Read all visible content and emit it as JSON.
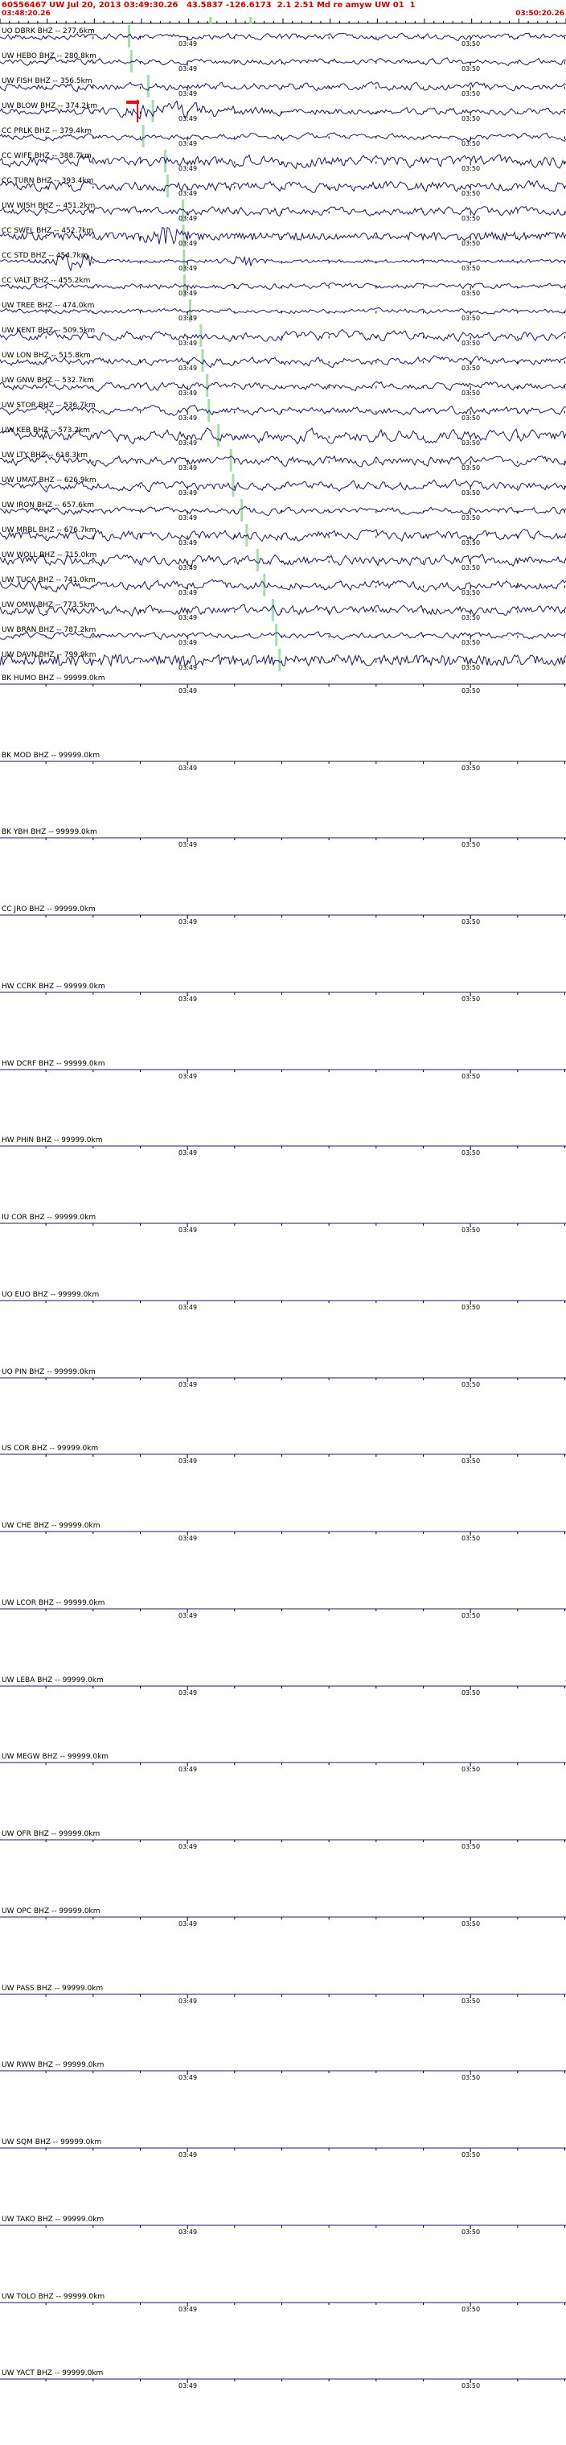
{
  "header": {
    "event_line": "60556467 UW Jul 20, 2013 03:49:30.26   43.5837 -126.6173  2.1 2.51 Md re amyw UW 01  1",
    "window_start": "03:48:20.26",
    "window_end": "03:50:20.26"
  },
  "timeline": {
    "tick_labels": [
      "03:49",
      "03:50"
    ],
    "minute_fracs": [
      0.3312,
      0.8312
    ],
    "first_tick_offset_s": 9.74,
    "tick_step_s": 10,
    "window_seconds": 120
  },
  "ruler": {
    "tick_step_s": 2,
    "pick_fracs": [
      0.372,
      0.443
    ]
  },
  "colors": {
    "background": "#ffffff",
    "trace": "#1a1a6e",
    "label": "#000000",
    "header_text": "#d40000",
    "pick_green": "#9fd49f",
    "pick_red": "#dd1111"
  },
  "chart_data": {
    "type": "line",
    "window_start": "03:48:20.26",
    "window_end": "03:50:20.26",
    "window_seconds": 120,
    "x_tick_labels": [
      "03:49",
      "03:50"
    ],
    "stations": [
      {
        "label": "UO DBRK BHZ -- 277.6km",
        "distance_km": 277.6,
        "amp": 5,
        "rough": 0.5,
        "seed": 11,
        "green": 0.228
      },
      {
        "label": "UW HEBO BHZ -- 280.8km",
        "distance_km": 280.8,
        "amp": 5,
        "rough": 0.45,
        "seed": 12,
        "green": 0.232
      },
      {
        "label": "UW FISH BHZ -- 356.5km",
        "distance_km": 356.5,
        "amp": 6,
        "rough": 0.5,
        "seed": 13,
        "green": 0.262
      },
      {
        "label": "UW BLOW BHZ -- 374.2km",
        "distance_km": 374.2,
        "amp": 5,
        "rough": 0.55,
        "seed": 14,
        "green": 0.27,
        "red": 0.243,
        "bursts": [
          {
            "c": 0.32,
            "w": 0.08,
            "g": 1.6
          }
        ]
      },
      {
        "label": "CC PRLK BHZ -- 379.4km",
        "distance_km": 379.4,
        "amp": 6,
        "rough": 0.3,
        "seed": 15,
        "green": 0.253
      },
      {
        "label": "CC WIFE BHZ -- 388.7km",
        "distance_km": 388.7,
        "amp": 9,
        "rough": 0.5,
        "seed": 16,
        "green": 0.292
      },
      {
        "label": "CC TURN BHZ -- 393.4km",
        "distance_km": 393.4,
        "amp": 8,
        "rough": 0.55,
        "seed": 17,
        "green": 0.296
      },
      {
        "label": "UW WISH BHZ -- 451.2km",
        "distance_km": 451.2,
        "amp": 6,
        "rough": 0.5,
        "seed": 18,
        "green": 0.323
      },
      {
        "label": "CC SWFL BHZ -- 452.7km",
        "distance_km": 452.7,
        "amp": 5,
        "rough": 0.95,
        "seed": 19,
        "green": 0.324,
        "bursts": [
          {
            "c": 0.29,
            "w": 0.02,
            "g": 2.2
          }
        ]
      },
      {
        "label": "CC STD BHZ -- 454.7km",
        "distance_km": 454.7,
        "amp": 2,
        "rough": 0.9,
        "seed": 20,
        "green": 0.325,
        "bursts": [
          {
            "c": 0.13,
            "w": 0.025,
            "g": 5
          },
          {
            "c": 0.43,
            "w": 0.02,
            "g": 3
          }
        ]
      },
      {
        "label": "CC VALT BHZ -- 455.2km",
        "distance_km": 455.2,
        "amp": 4,
        "rough": 0.6,
        "seed": 21,
        "green": 0.326
      },
      {
        "label": "UW TREE BHZ -- 474.0km",
        "distance_km": 474.0,
        "amp": 4,
        "rough": 0.45,
        "seed": 22,
        "green": 0.336
      },
      {
        "label": "UW KENT BHZ -- 509.5km",
        "distance_km": 509.5,
        "amp": 8,
        "rough": 0.35,
        "seed": 23,
        "green": 0.355
      },
      {
        "label": "UW LON BHZ -- 515.8km",
        "distance_km": 515.8,
        "amp": 8,
        "rough": 0.35,
        "seed": 24,
        "green": 0.358
      },
      {
        "label": "UW GNW BHZ -- 532.7km",
        "distance_km": 532.7,
        "amp": 7,
        "rough": 0.4,
        "seed": 25,
        "green": 0.366
      },
      {
        "label": "UW STOR BHZ -- 536.7km",
        "distance_km": 536.7,
        "amp": 7,
        "rough": 0.4,
        "seed": 26,
        "green": 0.369
      },
      {
        "label": "UW KEB BHZ -- 573.2km",
        "distance_km": 573.2,
        "amp": 10,
        "rough": 0.35,
        "seed": 27,
        "green": 0.386
      },
      {
        "label": "UW LTY BHZ -- 618.3km",
        "distance_km": 618.3,
        "amp": 8,
        "rough": 0.45,
        "seed": 28,
        "green": 0.408
      },
      {
        "label": "UW UMAT BHZ -- 626.9km",
        "distance_km": 626.9,
        "amp": 8,
        "rough": 0.4,
        "seed": 29,
        "green": 0.412
      },
      {
        "label": "UW IRON BHZ -- 657.6km",
        "distance_km": 657.6,
        "amp": 6,
        "rough": 0.5,
        "seed": 30,
        "green": 0.427
      },
      {
        "label": "UW MRBL BHZ -- 676.7km",
        "distance_km": 676.7,
        "amp": 8,
        "rough": 0.5,
        "seed": 31,
        "green": 0.436
      },
      {
        "label": "UW WOLL BHZ -- 715.0km",
        "distance_km": 715.0,
        "amp": 8,
        "rough": 0.5,
        "seed": 32,
        "green": 0.455
      },
      {
        "label": "UW TUCA BHZ -- 741.0km",
        "distance_km": 741.0,
        "amp": 8,
        "rough": 0.45,
        "seed": 33,
        "green": 0.467
      },
      {
        "label": "UW OMW BHZ -- 773.5km",
        "distance_km": 773.5,
        "amp": 7,
        "rough": 0.5,
        "seed": 34,
        "green": 0.482
      },
      {
        "label": "UW BRAN BHZ -- 787.2km",
        "distance_km": 787.2,
        "amp": 5,
        "rough": 0.5,
        "seed": 35,
        "green": 0.488
      },
      {
        "label": "UW DAVN BHZ -- 799.9km",
        "distance_km": 799.9,
        "amp": 7,
        "rough": 0.95,
        "seed": 36,
        "green": 0.494
      },
      {
        "label": "BK HUMO BHZ -- 99999.0km",
        "distance_km": 99999.0,
        "amp": 0,
        "flat": true
      },
      {
        "label": "BK MOD BHZ -- 99999.0km",
        "distance_km": 99999.0,
        "amp": 0,
        "flat": true
      },
      {
        "label": "BK YBH BHZ -- 99999.0km",
        "distance_km": 99999.0,
        "amp": 0,
        "flat": true
      },
      {
        "label": "CC JRO BHZ -- 99999.0km",
        "distance_km": 99999.0,
        "amp": 0,
        "flat": true
      },
      {
        "label": "HW CCRK BHZ -- 99999.0km",
        "distance_km": 99999.0,
        "amp": 0,
        "flat": true
      },
      {
        "label": "HW DCRF BHZ -- 99999.0km",
        "distance_km": 99999.0,
        "amp": 0,
        "flat": true
      },
      {
        "label": "HW PHIN BHZ -- 99999.0km",
        "distance_km": 99999.0,
        "amp": 0,
        "flat": true
      },
      {
        "label": "IU COR BHZ -- 99999.0km",
        "distance_km": 99999.0,
        "amp": 0,
        "flat": true
      },
      {
        "label": "UO EUO BHZ -- 99999.0km",
        "distance_km": 99999.0,
        "amp": 0,
        "flat": true
      },
      {
        "label": "UO PIN BHZ -- 99999.0km",
        "distance_km": 99999.0,
        "amp": 0,
        "flat": true
      },
      {
        "label": "US COR BHZ -- 99999.0km",
        "distance_km": 99999.0,
        "amp": 0,
        "flat": true
      },
      {
        "label": "UW CHE BHZ -- 99999.0km",
        "distance_km": 99999.0,
        "amp": 0,
        "flat": true
      },
      {
        "label": "UW LCOR BHZ -- 99999.0km",
        "distance_km": 99999.0,
        "amp": 0,
        "flat": true
      },
      {
        "label": "UW LEBA BHZ -- 99999.0km",
        "distance_km": 99999.0,
        "amp": 0,
        "flat": true
      },
      {
        "label": "UW MEGW BHZ -- 99999.0km",
        "distance_km": 99999.0,
        "amp": 0,
        "flat": true
      },
      {
        "label": "UW OFR BHZ -- 99999.0km",
        "distance_km": 99999.0,
        "amp": 0,
        "flat": true
      },
      {
        "label": "UW OPC BHZ -- 99999.0km",
        "distance_km": 99999.0,
        "amp": 0,
        "flat": true
      },
      {
        "label": "UW PASS BHZ -- 99999.0km",
        "distance_km": 99999.0,
        "amp": 0,
        "flat": true
      },
      {
        "label": "UW RWW BHZ -- 99999.0km",
        "distance_km": 99999.0,
        "amp": 0,
        "flat": true
      },
      {
        "label": "UW SQM BHZ -- 99999.0km",
        "distance_km": 99999.0,
        "amp": 0,
        "flat": true
      },
      {
        "label": "UW TAKO BHZ -- 99999.0km",
        "distance_km": 99999.0,
        "amp": 0,
        "flat": true
      },
      {
        "label": "UW TOLO BHZ -- 99999.0km",
        "distance_km": 99999.0,
        "amp": 0,
        "flat": true
      },
      {
        "label": "UW YACT BHZ -- 99999.0km",
        "distance_km": 99999.0,
        "amp": 0,
        "flat": true
      }
    ]
  }
}
